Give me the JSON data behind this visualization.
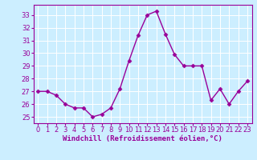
{
  "x": [
    0,
    1,
    2,
    3,
    4,
    5,
    6,
    7,
    8,
    9,
    10,
    11,
    12,
    13,
    14,
    15,
    16,
    17,
    18,
    19,
    20,
    21,
    22,
    23
  ],
  "y": [
    27.0,
    27.0,
    26.7,
    26.0,
    25.7,
    25.7,
    25.0,
    25.2,
    25.7,
    27.2,
    29.4,
    31.4,
    33.0,
    33.3,
    31.5,
    29.9,
    29.0,
    29.0,
    29.0,
    26.3,
    27.2,
    26.0,
    27.0,
    27.8
  ],
  "line_color": "#990099",
  "marker": "D",
  "marker_size": 2.5,
  "linewidth": 1.0,
  "bg_color": "#cceeff",
  "grid_color": "#ffffff",
  "xlabel": "Windchill (Refroidissement éolien,°C)",
  "xlabel_fontsize": 6.5,
  "tick_fontsize": 6.0,
  "xlim": [
    -0.5,
    23.5
  ],
  "ylim": [
    24.5,
    33.8
  ],
  "yticks": [
    25,
    26,
    27,
    28,
    29,
    30,
    31,
    32,
    33
  ],
  "xticks": [
    0,
    1,
    2,
    3,
    4,
    5,
    6,
    7,
    8,
    9,
    10,
    11,
    12,
    13,
    14,
    15,
    16,
    17,
    18,
    19,
    20,
    21,
    22,
    23
  ],
  "spine_color": "#990099",
  "tick_color": "#990099"
}
